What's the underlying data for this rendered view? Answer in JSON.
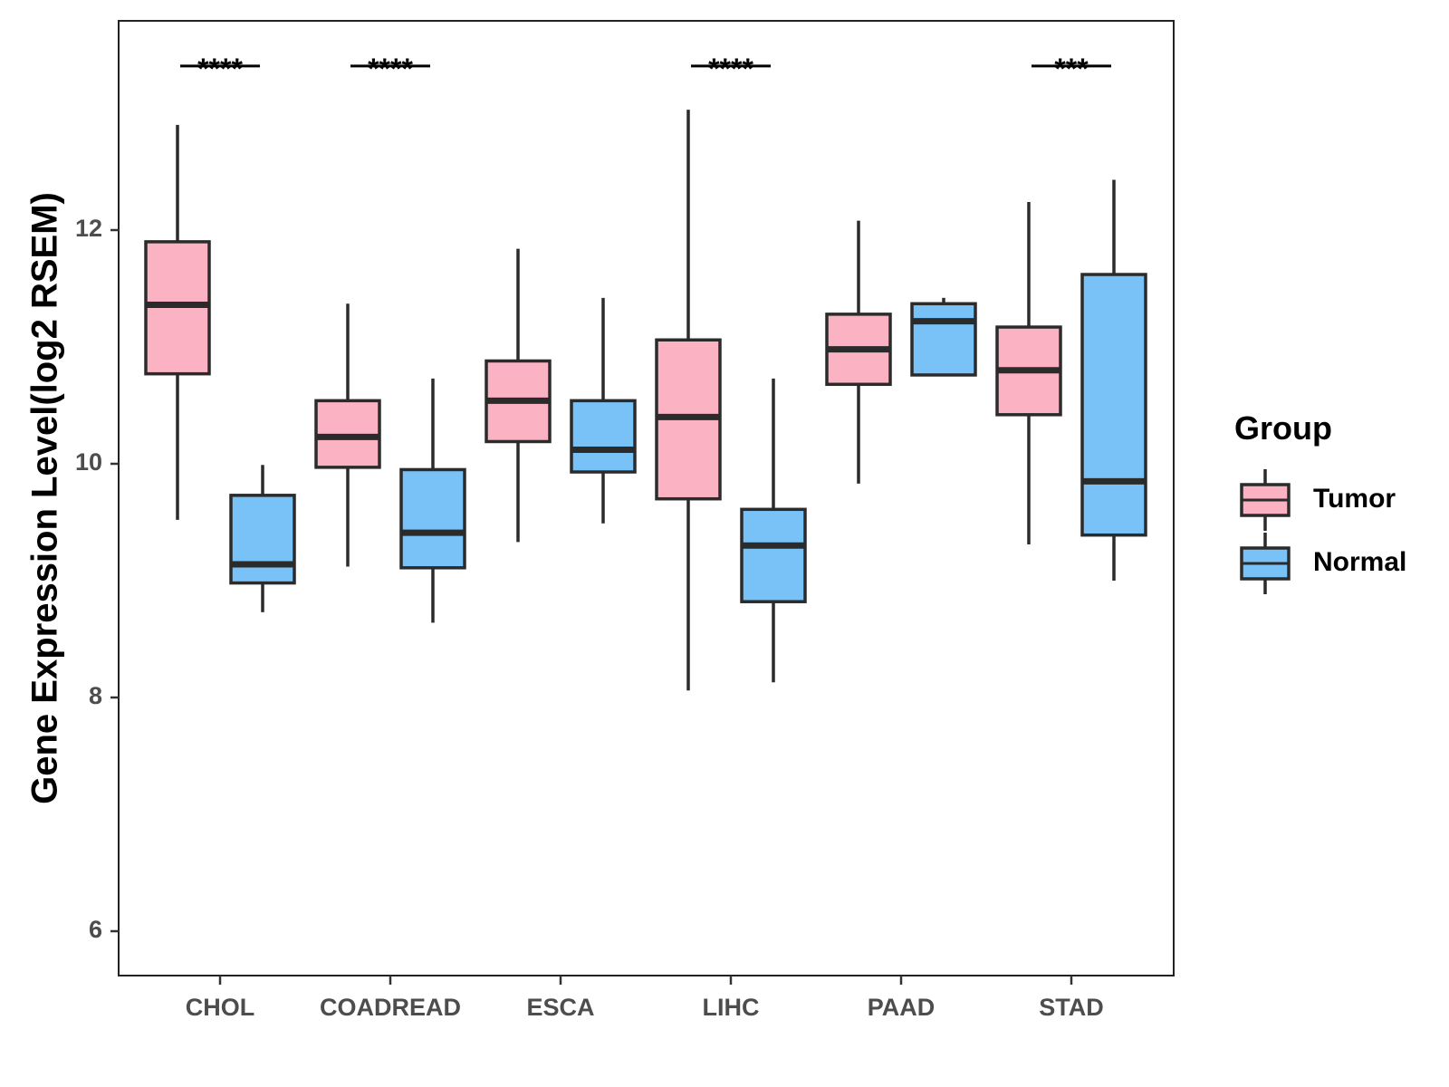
{
  "chart_data": {
    "type": "boxplot",
    "title": "",
    "xlabel": "",
    "ylabel": "Gene Expression Level(log2 RSEM)",
    "ylim": [
      5.6,
      13.8
    ],
    "yticks": [
      6,
      8,
      10,
      12
    ],
    "grid": false,
    "categories": [
      "CHOL",
      "COADREAD",
      "ESCA",
      "LIHC",
      "PAAD",
      "STAD"
    ],
    "legend": {
      "title": "Group",
      "position": "right",
      "entries": [
        {
          "name": "Tumor",
          "color": "#FBB2C3"
        },
        {
          "name": "Normal",
          "color": "#78C2F7"
        }
      ]
    },
    "series": [
      {
        "name": "Tumor",
        "color": "#FBB2C3",
        "boxes": [
          {
            "category": "CHOL",
            "whisker_low": 9.52,
            "q1": 10.77,
            "median": 11.36,
            "q3": 11.9,
            "whisker_high": 12.9
          },
          {
            "category": "COADREAD",
            "whisker_low": 9.12,
            "q1": 9.97,
            "median": 10.23,
            "q3": 10.54,
            "whisker_high": 11.37
          },
          {
            "category": "ESCA",
            "whisker_low": 9.33,
            "q1": 10.19,
            "median": 10.54,
            "q3": 10.88,
            "whisker_high": 11.84
          },
          {
            "category": "LIHC",
            "whisker_low": 8.06,
            "q1": 9.7,
            "median": 10.4,
            "q3": 11.06,
            "whisker_high": 13.03
          },
          {
            "category": "PAAD",
            "whisker_low": 9.83,
            "q1": 10.68,
            "median": 10.98,
            "q3": 11.28,
            "whisker_high": 12.08
          },
          {
            "category": "STAD",
            "whisker_low": 9.31,
            "q1": 10.42,
            "median": 10.8,
            "q3": 11.17,
            "whisker_high": 12.24
          }
        ]
      },
      {
        "name": "Normal",
        "color": "#78C2F7",
        "boxes": [
          {
            "category": "CHOL",
            "whisker_low": 8.73,
            "q1": 8.98,
            "median": 9.14,
            "q3": 9.73,
            "whisker_high": 9.99
          },
          {
            "category": "COADREAD",
            "whisker_low": 8.64,
            "q1": 9.11,
            "median": 9.41,
            "q3": 9.95,
            "whisker_high": 10.73
          },
          {
            "category": "ESCA",
            "whisker_low": 9.49,
            "q1": 9.93,
            "median": 10.12,
            "q3": 10.54,
            "whisker_high": 11.42
          },
          {
            "category": "LIHC",
            "whisker_low": 8.13,
            "q1": 8.82,
            "median": 9.3,
            "q3": 9.61,
            "whisker_high": 10.73
          },
          {
            "category": "PAAD",
            "whisker_low": 10.76,
            "q1": 10.76,
            "median": 11.22,
            "q3": 11.37,
            "whisker_high": 11.42
          },
          {
            "category": "STAD",
            "whisker_low": 9.0,
            "q1": 9.39,
            "median": 9.85,
            "q3": 11.62,
            "whisker_high": 12.43
          }
        ]
      }
    ],
    "significance": [
      {
        "category": "CHOL",
        "label": "****",
        "y": 13.42
      },
      {
        "category": "COADREAD",
        "label": "****",
        "y": 13.42
      },
      {
        "category": "LIHC",
        "label": "****",
        "y": 13.42
      },
      {
        "category": "STAD",
        "label": "***",
        "y": 13.42
      }
    ]
  }
}
